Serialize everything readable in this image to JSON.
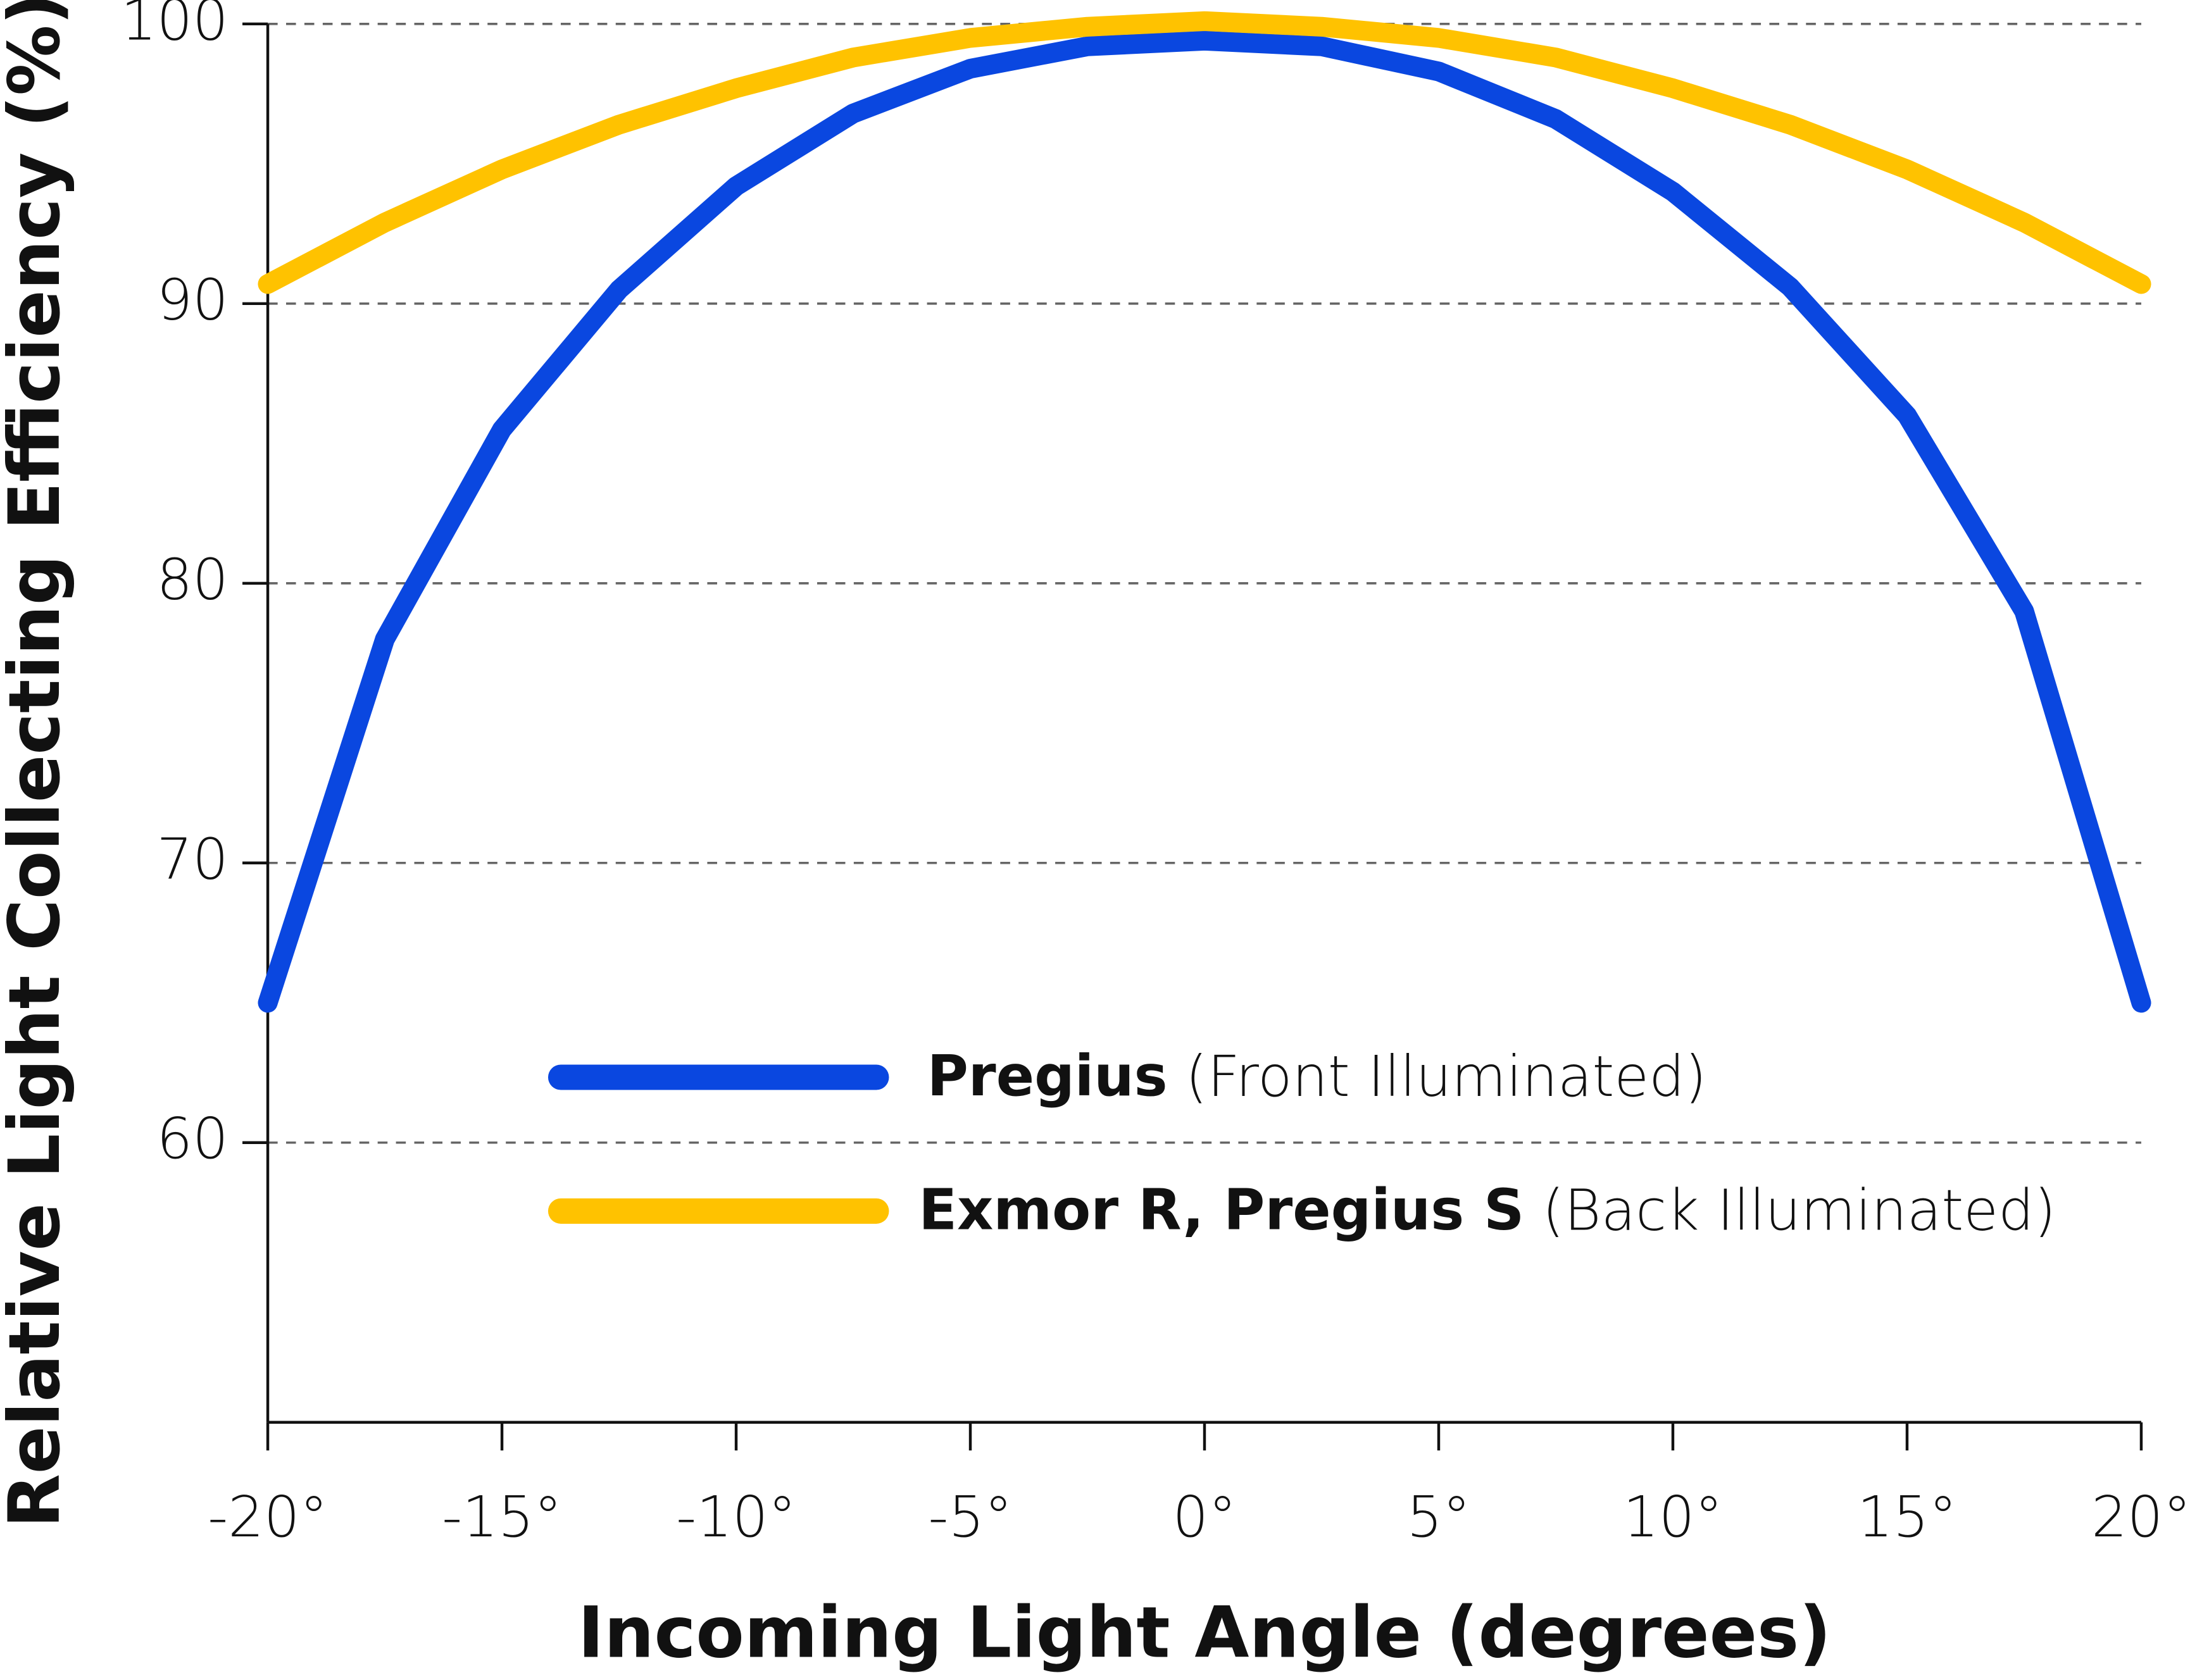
{
  "chart_data": {
    "type": "line",
    "x_label": "Incoming Light Angle (degrees)",
    "y_label": "Relative Light Collecting Efficiency (%)",
    "x": [
      -20,
      -17.5,
      -15,
      -12.5,
      -10,
      -7.5,
      -5,
      -2.5,
      0,
      2.5,
      5,
      7.5,
      10,
      12.5,
      15,
      17.5,
      20
    ],
    "series": [
      {
        "name": "Pregius",
        "description": "(Front Illuminated)",
        "color": "#0a47e0",
        "values": [
          65,
          78,
          85.5,
          90.5,
          94.2,
          96.8,
          98.4,
          99.2,
          99.4,
          99.2,
          98.3,
          96.6,
          94.0,
          90.6,
          86,
          79,
          65
        ]
      },
      {
        "name": "Exmor R, Pregius S",
        "description": "(Back Illuminated)",
        "color": "#ffc200",
        "values": [
          90.7,
          92.9,
          94.8,
          96.4,
          97.7,
          98.8,
          99.5,
          99.9,
          100.1,
          99.9,
          99.5,
          98.8,
          97.7,
          96.4,
          94.8,
          92.9,
          90.7
        ]
      }
    ],
    "xlim": [
      -20,
      20
    ],
    "xticks": [
      {
        "value": -20,
        "label": "-20°"
      },
      {
        "value": -15,
        "label": "-15°"
      },
      {
        "value": -10,
        "label": "-10°"
      },
      {
        "value": -5,
        "label": "-5°"
      },
      {
        "value": 0,
        "label": "0°"
      },
      {
        "value": 5,
        "label": "5°"
      },
      {
        "value": 10,
        "label": "10°"
      },
      {
        "value": 15,
        "label": "15°"
      },
      {
        "value": 20,
        "label": "20°"
      }
    ],
    "ylim": [
      50,
      100
    ],
    "yticks": [
      60,
      70,
      80,
      90,
      100
    ],
    "grid": true,
    "legend": "lower center"
  }
}
